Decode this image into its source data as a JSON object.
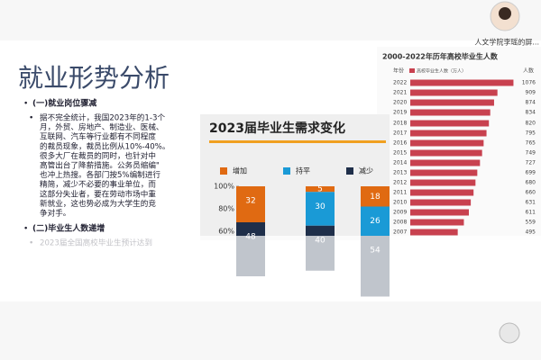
{
  "user": {
    "name": "人文学院李瑶的屏..."
  },
  "slide": {
    "title": "就业形势分析",
    "sections": [
      {
        "heading": "(一)就业岗位骤减",
        "lines": [
          "据不完全统计，我国2023年的1-3个",
          "月，外贸、房地产、制造业、医械、",
          "互联网、汽车等行业都有不同程度",
          "的裁员现象，裁员比例从10%-40%。",
          "很多大厂在裁员的同时，也针对中",
          "高管出台了降薪措施。公务员缩编\"",
          "也冲上热搜。各部门按5%编制进行",
          "精简，减少不必要的事业单位，而",
          "这部分失业者，要在劳动市场中重",
          "新就业，这也势必成为大学生的竞",
          "争对手。"
        ]
      },
      {
        "heading": "(二)毕业生人数递增",
        "lines": [
          "2023届全国高校毕业生预计达到"
        ]
      }
    ]
  },
  "demand_chart": {
    "type": "bar",
    "title": "2023届毕业生需求变化",
    "series": [
      {
        "name": "增加",
        "color": "#e06a12",
        "values": [
          32,
          5,
          18
        ]
      },
      {
        "name": "持平",
        "color": "#1a9ad6",
        "values": [
          null,
          30,
          26
        ]
      },
      {
        "name": "减少",
        "color": "#1f2f4a",
        "values": [
          48,
          40,
          54
        ]
      }
    ],
    "ylim": [
      0,
      100
    ],
    "yticks": [
      {
        "value": 100,
        "label": "100%"
      },
      {
        "value": 80,
        "label": "80%"
      },
      {
        "value": 60,
        "label": "60%"
      }
    ]
  },
  "graduates_chart": {
    "type": "bar",
    "title": "2000-2022年历年高校毕业生人数",
    "year_header": "年份",
    "legend": "高校毕业生人数（万人）",
    "value_header": "人数",
    "color": "#c8414f",
    "categories": [
      "2022",
      "2021",
      "2020",
      "2019",
      "2018",
      "2017",
      "2016",
      "2015",
      "2014",
      "2013",
      "2012",
      "2011",
      "2010",
      "2009",
      "2008",
      "2007"
    ],
    "values": [
      1076,
      909,
      874,
      834,
      820,
      795,
      765,
      749,
      727,
      699,
      680,
      660,
      631,
      611,
      559,
      495
    ]
  }
}
